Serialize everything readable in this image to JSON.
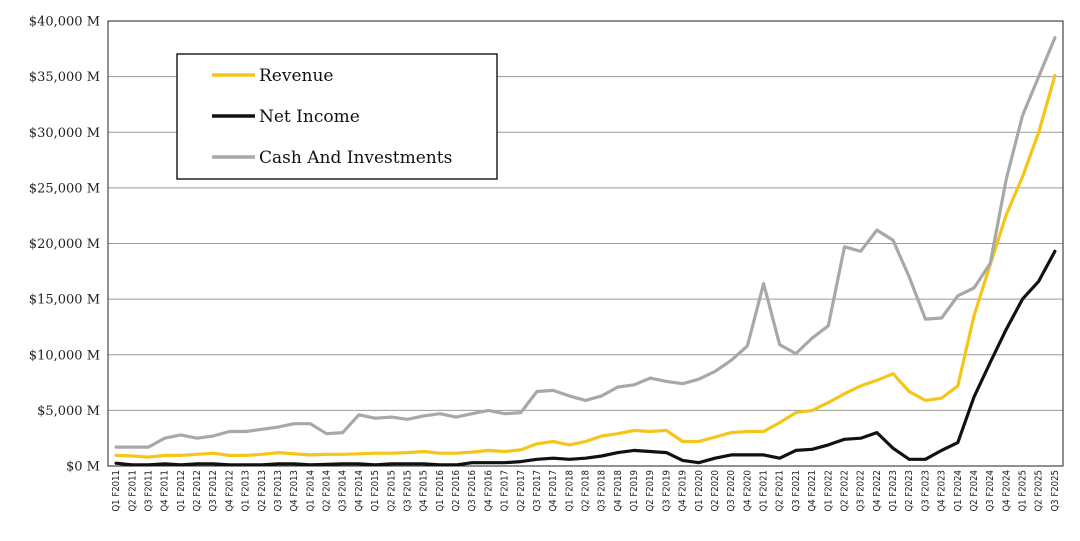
{
  "chart_data": {
    "type": "line",
    "title": "",
    "xlabel": "",
    "ylabel": "",
    "ylim": [
      0,
      40000
    ],
    "grid": true,
    "legend_position": "top-left",
    "y_ticks": [
      {
        "value": 0,
        "label": "$0 M"
      },
      {
        "value": 5000,
        "label": "$5,000 M"
      },
      {
        "value": 10000,
        "label": "$10,000 M"
      },
      {
        "value": 15000,
        "label": "$15,000 M"
      },
      {
        "value": 20000,
        "label": "$20,000 M"
      },
      {
        "value": 25000,
        "label": "$25,000 M"
      },
      {
        "value": 30000,
        "label": "$30,000 M"
      },
      {
        "value": 35000,
        "label": "$35,000 M"
      },
      {
        "value": 40000,
        "label": "$40,000 M"
      }
    ],
    "categories": [
      "Q1 F2011",
      "Q2 F2011",
      "Q3 F2011",
      "Q4 F2011",
      "Q1 F2012",
      "Q2 F2012",
      "Q3 F2012",
      "Q4 F2012",
      "Q1 F2013",
      "Q2 F2013",
      "Q3 F2013",
      "Q4 F2013",
      "Q1 F2014",
      "Q2 F2014",
      "Q3 F2014",
      "Q4 F2014",
      "Q1 F2015",
      "Q2 F2015",
      "Q3 F2015",
      "Q4 F2015",
      "Q1 F2016",
      "Q2 F2016",
      "Q3 F2016",
      "Q4 F2016",
      "Q1 F2017",
      "Q2 F2017",
      "Q3 F2017",
      "Q4 F2017",
      "Q1 F2018",
      "Q2 F2018",
      "Q3 F2018",
      "Q4 F2018",
      "Q1 F2019",
      "Q2 F2019",
      "Q3 F2019",
      "Q4 F2019",
      "Q1 F2020",
      "Q2 F2020",
      "Q3 F2020",
      "Q4 F2020",
      "Q1 F2021",
      "Q2 F2021",
      "Q3 F2021",
      "Q4 F2021",
      "Q1 F2022",
      "Q2 F2022",
      "Q3 F2022",
      "Q4 F2022",
      "Q1 F2023",
      "Q2 F2023",
      "Q3 F2023",
      "Q4 F2023",
      "Q1 F2024",
      "Q2 F2024",
      "Q3 F2024",
      "Q4 F2024",
      "Q1 F2025",
      "Q2 F2025",
      "Q3 F2025"
    ],
    "series": [
      {
        "name": "Revenue",
        "color": "#f5c518",
        "values": [
          962,
          900,
          800,
          950,
          950,
          1050,
          1150,
          950,
          950,
          1050,
          1200,
          1100,
          1000,
          1050,
          1050,
          1100,
          1150,
          1150,
          1200,
          1300,
          1150,
          1150,
          1250,
          1400,
          1300,
          1450,
          2000,
          2200,
          1900,
          2200,
          2700,
          2900,
          3200,
          3100,
          3200,
          2200,
          2200,
          2600,
          3000,
          3100,
          3100,
          3900,
          4800,
          5000,
          5700,
          6500,
          7200,
          7700,
          8300,
          6700,
          5900,
          6100,
          7200,
          13500,
          18100,
          22600,
          26000,
          30000,
          35100
        ]
      },
      {
        "name": "Net Income",
        "color": "#111111",
        "values": [
          250,
          100,
          100,
          200,
          100,
          200,
          200,
          100,
          100,
          100,
          200,
          200,
          100,
          150,
          200,
          200,
          100,
          200,
          200,
          200,
          100,
          100,
          300,
          300,
          300,
          400,
          600,
          700,
          600,
          700,
          900,
          1200,
          1400,
          1300,
          1200,
          500,
          300,
          700,
          1000,
          1000,
          1000,
          700,
          1400,
          1500,
          1900,
          2400,
          2500,
          3000,
          1600,
          600,
          600,
          1400,
          2100,
          6200,
          9300,
          12300,
          15000,
          16600,
          19300
        ]
      },
      {
        "name": "Cash And Investments",
        "color": "#a8a8a8",
        "values": [
          1700,
          1700,
          1700,
          2500,
          2800,
          2500,
          2700,
          3100,
          3100,
          3300,
          3500,
          3800,
          3800,
          2900,
          3000,
          4600,
          4300,
          4400,
          4200,
          4500,
          4700,
          4400,
          4700,
          5000,
          4700,
          4800,
          6700,
          6800,
          6300,
          5900,
          6300,
          7100,
          7300,
          7900,
          7600,
          7400,
          7800,
          8500,
          9500,
          10800,
          16400,
          10900,
          10100,
          11500,
          12600,
          19700,
          19300,
          21200,
          20300,
          17000,
          13200,
          13300,
          15300,
          16000,
          18200,
          25800,
          31500,
          35000,
          38500
        ]
      }
    ]
  }
}
